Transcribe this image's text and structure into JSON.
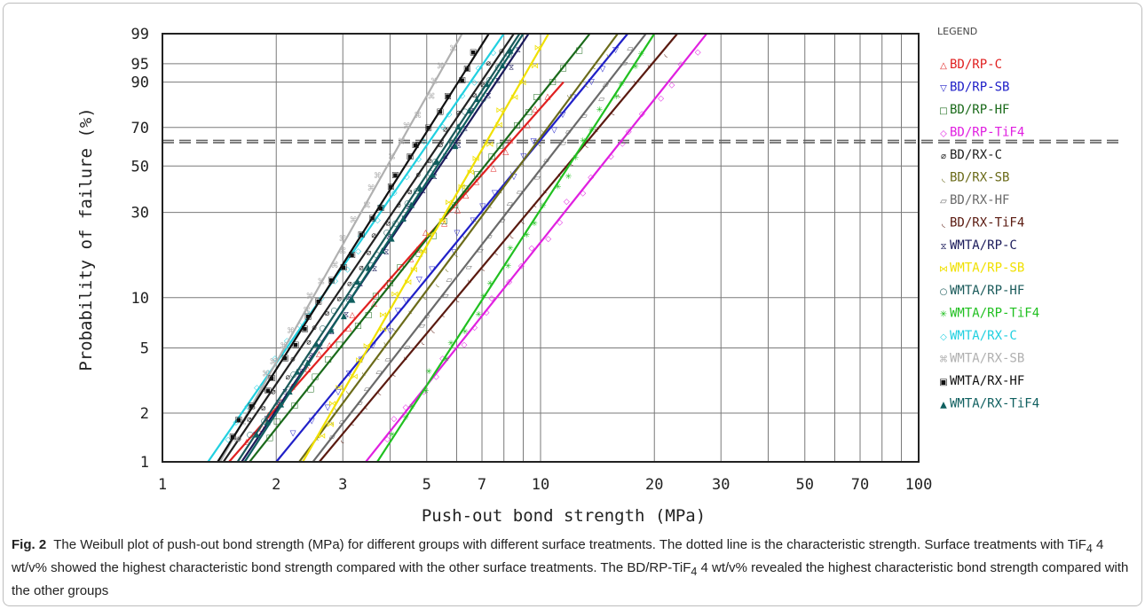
{
  "chart_data": {
    "type": "line",
    "title": "",
    "xlabel": "Push-out bond strength (MPa)",
    "ylabel": "Probability of failure (%)",
    "x_scale": "log",
    "y_scale": "weibull",
    "xlim": [
      1,
      100
    ],
    "ylim": [
      1,
      99
    ],
    "x_ticks": [
      1,
      2,
      3,
      5,
      7,
      10,
      20,
      30,
      50,
      70,
      100
    ],
    "x_tick_labels": [
      "1",
      "2",
      "3",
      "5",
      "7",
      "10",
      "20",
      "30",
      "50",
      "70",
      "100"
    ],
    "y_ticks": [
      1,
      2,
      5,
      10,
      30,
      50,
      70,
      90,
      95,
      99
    ],
    "y_tick_labels": [
      "1",
      "2",
      "5",
      "10",
      "30",
      "50",
      "70",
      "90",
      "95",
      "99"
    ],
    "characteristic_lines": [
      62.0,
      63.2
    ],
    "grid": true,
    "legend_title": "LEGEND",
    "legend_position": "right",
    "series": [
      {
        "name": "BD/RP-C",
        "marker": "△",
        "color": "#e02020",
        "x": [
          1.5,
          11.5
        ],
        "y": [
          1,
          90
        ]
      },
      {
        "name": "BD/RP-SB",
        "marker": "▽",
        "color": "#2020c8",
        "x": [
          2.0,
          17.0
        ],
        "y": [
          1,
          99
        ]
      },
      {
        "name": "BD/RP-HF",
        "marker": "□",
        "color": "#1a6a1a",
        "x": [
          1.7,
          13.5
        ],
        "y": [
          1,
          99
        ]
      },
      {
        "name": "BD/RP-TiF4",
        "marker": "◇",
        "color": "#e020e0",
        "x": [
          3.45,
          27.5
        ],
        "y": [
          1,
          99
        ]
      },
      {
        "name": "BD/RX-C",
        "marker": "⌀",
        "color": "#222222",
        "x": [
          1.45,
          8.5
        ],
        "y": [
          1,
          99
        ]
      },
      {
        "name": "BD/RX-SB",
        "marker": "◟",
        "color": "#6b6b1a",
        "x": [
          2.3,
          16.0
        ],
        "y": [
          1,
          99
        ]
      },
      {
        "name": "BD/RX-HF",
        "marker": "▱",
        "color": "#6a6a6a",
        "x": [
          2.5,
          19.0
        ],
        "y": [
          1,
          99
        ]
      },
      {
        "name": "BD/RX-TiF4",
        "marker": "◟",
        "color": "#5a1a10",
        "x": [
          2.6,
          23.0
        ],
        "y": [
          1,
          99
        ]
      },
      {
        "name": "WMTA/RP-C",
        "marker": "⧖",
        "color": "#1a1a5a",
        "x": [
          1.62,
          9.3
        ],
        "y": [
          1,
          99
        ]
      },
      {
        "name": "WMTA/RP-SB",
        "marker": "⋈",
        "color": "#f0e000",
        "x": [
          2.35,
          10.5
        ],
        "y": [
          1,
          99
        ]
      },
      {
        "name": "WMTA/RP-HF",
        "marker": "○",
        "color": "#1a5a5a",
        "x": [
          1.58,
          8.8
        ],
        "y": [
          1,
          99
        ]
      },
      {
        "name": "WMTA/RP-TiF4",
        "marker": "✳",
        "color": "#20c020",
        "x": [
          3.7,
          20.0
        ],
        "y": [
          1,
          99
        ]
      },
      {
        "name": "WMTA/RX-C",
        "marker": "◇",
        "color": "#20d0e0",
        "x": [
          1.32,
          8.0
        ],
        "y": [
          1,
          99
        ]
      },
      {
        "name": "WMTA/RX-SB",
        "marker": "⌘",
        "color": "#b0b0b0",
        "x": [
          1.42,
          6.2
        ],
        "y": [
          1,
          99
        ]
      },
      {
        "name": "WMTA/RX-HF",
        "marker": "▣",
        "color": "#111111",
        "x": [
          1.4,
          7.3
        ],
        "y": [
          1,
          99
        ]
      },
      {
        "name": "WMTA/RX-TiF4",
        "marker": "▲",
        "color": "#0f5f5f",
        "x": [
          1.65,
          9.0
        ],
        "y": [
          1,
          99
        ]
      }
    ]
  },
  "caption": {
    "label": "Fig. 2",
    "text_part1": "The Weibull plot of push-out bond strength (MPa) for different groups with different surface treatments. The dotted line is the characteristic strength. Surface treatments with TiF",
    "sub1": "4",
    "text_part2": " 4 wt/v% showed the highest characteristic bond strength compared with the other surface treatments. The BD/RP-TiF",
    "sub2": "4",
    "text_part3": " 4 wt/v% revealed the highest characteristic bond strength compared with the other groups"
  }
}
